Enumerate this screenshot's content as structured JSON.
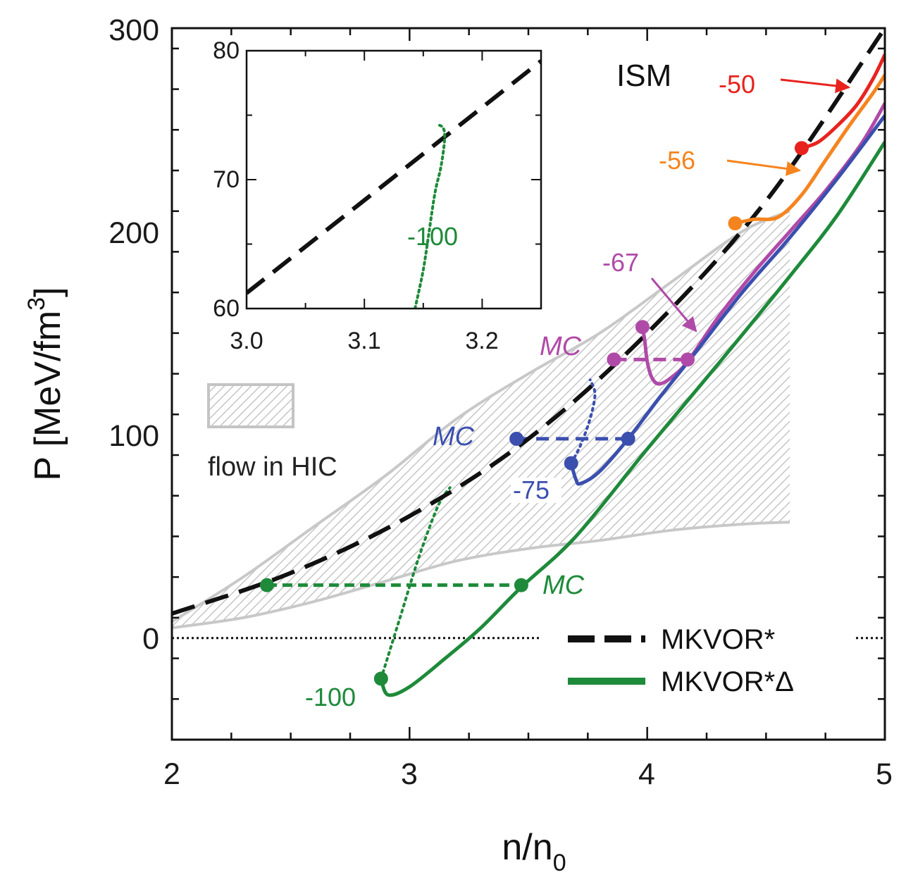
{
  "chart_data": {
    "type": "line",
    "xlabel": "n/n",
    "xlabel_sub": "0",
    "ylabel": "P [MeV/fm",
    "ylabel_sup": "3",
    "ylabel_end": "]",
    "xlim": [
      2,
      5
    ],
    "ylim": [
      -50,
      300
    ],
    "x_ticks": [
      "2",
      "3",
      "4",
      "5"
    ],
    "y_ticks": [
      "0",
      "100",
      "200",
      "300"
    ],
    "title_annotation": "ISM",
    "legend": {
      "position": "bottom-right",
      "entries": [
        {
          "label": "MKVOR*",
          "style": "dashed",
          "color": "#111111"
        },
        {
          "label": "MKVOR*Δ",
          "style": "solid",
          "color": "#1e8a3a"
        }
      ]
    },
    "flow_band": {
      "label": "flow in HIC",
      "x": [
        2.0,
        2.3,
        2.6,
        2.9,
        3.2,
        3.5,
        3.8,
        4.1,
        4.4,
        4.6
      ],
      "upper": [
        8,
        30,
        55,
        80,
        108,
        130,
        150,
        175,
        200,
        210
      ],
      "lower": [
        5,
        10,
        18,
        28,
        38,
        44,
        48,
        53,
        56,
        57
      ]
    },
    "series": [
      {
        "name": "MKVOR*",
        "style": "dashed",
        "color": "#111111",
        "x": [
          2.0,
          2.5,
          3.0,
          3.5,
          4.0,
          4.5,
          5.0
        ],
        "y": [
          12,
          32,
          60,
          98,
          150,
          215,
          300
        ]
      },
      {
        "name": "-50",
        "color": "#e8231f",
        "x": [
          4.65,
          4.72,
          4.8,
          4.88,
          4.95,
          5.0
        ],
        "y": [
          241,
          244,
          252,
          262,
          275,
          287
        ]
      },
      {
        "name": "-56",
        "color": "#f5841f",
        "x": [
          4.37,
          4.45,
          4.55,
          4.65,
          4.75,
          4.85,
          4.95,
          5.0
        ],
        "y": [
          204,
          206,
          207,
          218,
          235,
          252,
          268,
          277
        ]
      },
      {
        "name": "-67",
        "color": "#b04aa8",
        "x": [
          3.98,
          3.99,
          4.0,
          4.02,
          4.05,
          4.1,
          4.17,
          4.3,
          4.45,
          4.6,
          4.75,
          4.9,
          5.0
        ],
        "y": [
          153,
          146,
          136,
          128,
          125,
          128,
          136,
          158,
          180,
          200,
          220,
          243,
          263
        ]
      },
      {
        "name": "-75",
        "color": "#3b4fae",
        "x": [
          3.68,
          3.7,
          3.72,
          3.8,
          3.92,
          4.05,
          4.2,
          4.4,
          4.6,
          4.8,
          5.0
        ],
        "y": [
          86,
          78,
          76,
          82,
          98,
          118,
          140,
          170,
          197,
          226,
          257
        ]
      },
      {
        "name": "-100",
        "color": "#1e8a3a",
        "x": [
          2.88,
          2.91,
          3.0,
          3.15,
          3.3,
          3.47,
          3.7,
          4.0,
          4.3,
          4.6,
          4.8,
          5.0
        ],
        "y": [
          -20,
          -28,
          -24,
          -10,
          5,
          25,
          50,
          93,
          135,
          178,
          208,
          244
        ]
      }
    ],
    "maxwell_constructions": [
      {
        "label": "MC",
        "color": "#1e8a3a",
        "x": [
          2.4,
          3.47
        ],
        "y": 26
      },
      {
        "label": "MC",
        "color": "#3b4fae",
        "x": [
          3.45,
          3.92
        ],
        "y": 98
      },
      {
        "label": "MC",
        "color": "#b04aa8",
        "x": [
          3.86,
          4.17
        ],
        "y": 137
      }
    ],
    "unstable_branches": [
      {
        "color": "#1e8a3a",
        "x": [
          2.88,
          2.96,
          3.04,
          3.12,
          3.17
        ],
        "y": [
          -20,
          10,
          40,
          65,
          74
        ]
      },
      {
        "color": "#3b4fae",
        "x": [
          3.68,
          3.72,
          3.76,
          3.78,
          3.76
        ],
        "y": [
          86,
          95,
          108,
          120,
          127
        ]
      },
      {
        "color": "#b04aa8",
        "x": [
          3.98,
          3.99,
          4.0
        ],
        "y": [
          153,
          145,
          136
        ]
      }
    ],
    "annotations": [
      {
        "text": "-50",
        "color": "#e8231f"
      },
      {
        "text": "-56",
        "color": "#f5841f"
      },
      {
        "text": "-67",
        "color": "#b04aa8"
      },
      {
        "text": "-75",
        "color": "#3b4fae"
      },
      {
        "text": "-100",
        "color": "#1e8a3a"
      }
    ],
    "inset": {
      "xlim": [
        3.0,
        3.25
      ],
      "ylim": [
        60,
        80
      ],
      "x_ticks": [
        "3.0",
        "3.1",
        "3.2"
      ],
      "y_ticks": [
        "60",
        "70",
        "80"
      ],
      "label": "-100",
      "dashed": {
        "x": [
          3.0,
          3.25
        ],
        "y": [
          61.2,
          79.2
        ]
      },
      "green": {
        "x": [
          3.143,
          3.15,
          3.155,
          3.16,
          3.165,
          3.168,
          3.167,
          3.161
        ],
        "y": [
          60,
          63,
          66,
          69,
          71,
          73,
          74,
          74.3
        ]
      }
    }
  }
}
